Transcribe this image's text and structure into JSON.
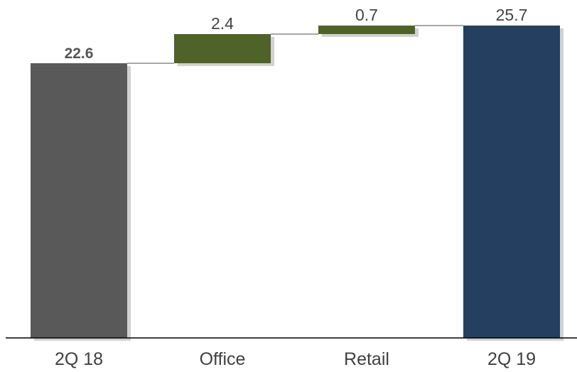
{
  "chart_data": {
    "type": "bar",
    "subtype": "waterfall",
    "categories": [
      "2Q 18",
      "Office",
      "Retail",
      "2Q 19"
    ],
    "values": [
      22.6,
      2.4,
      0.7,
      25.7
    ],
    "value_labels": [
      "22.6",
      "2.4",
      "0.7",
      "25.7"
    ],
    "kinds": [
      "total",
      "increase",
      "increase",
      "total"
    ],
    "colors": {
      "start_total": "#595959",
      "increase": "#4f6228",
      "end_total": "#243f60",
      "connector": "#8c8c8c",
      "baseline": "#000000"
    },
    "title": "",
    "xlabel": "",
    "ylabel": "",
    "ylim": [
      0,
      26.6
    ],
    "grid": false,
    "legend": "none"
  }
}
